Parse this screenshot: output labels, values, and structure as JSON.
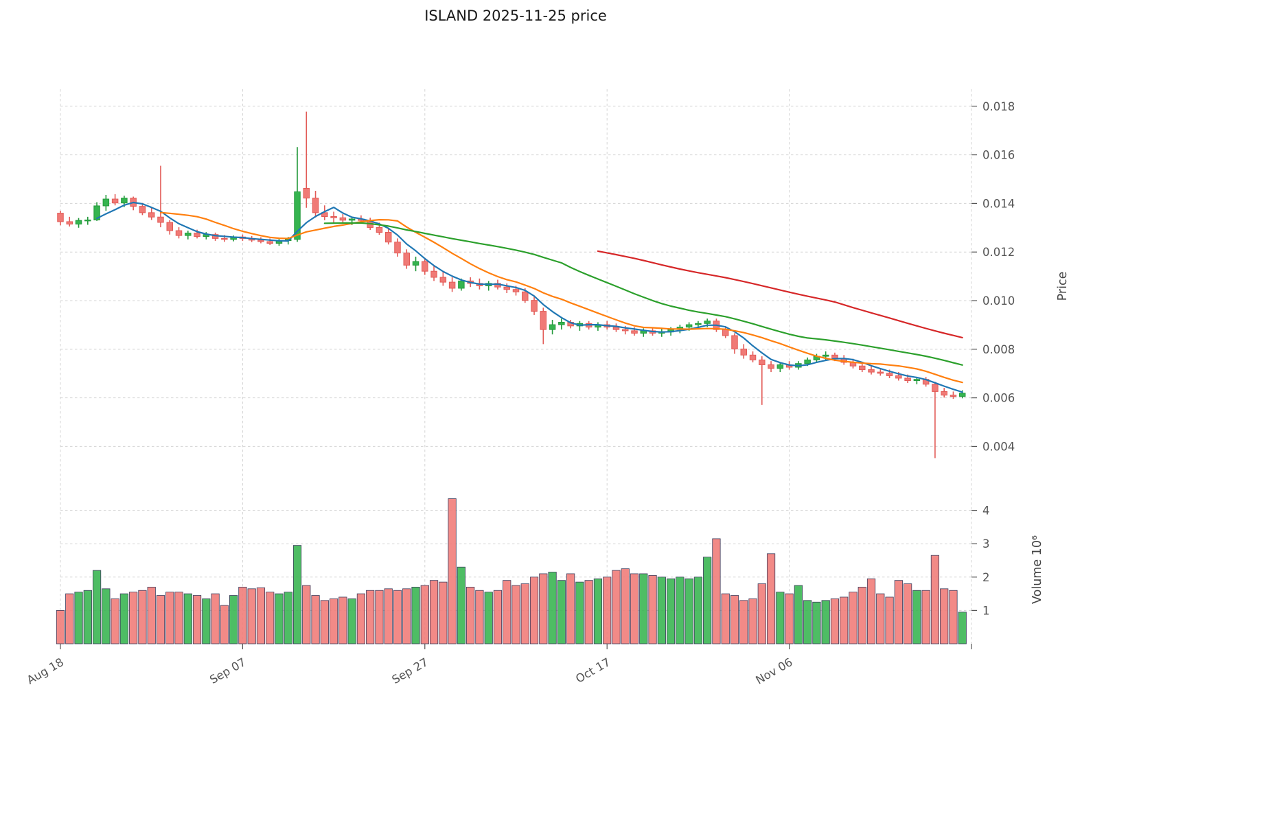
{
  "axes": {
    "price_label": "Price",
    "volume_label": "Volume  10⁶"
  },
  "chart_data": {
    "type": "candlestick",
    "title": "ISLAND  2025-11-25  price",
    "grid": true,
    "legend": "none",
    "price_ylim": [
      0.0026,
      0.0187
    ],
    "volume_ylim": [
      0,
      4.65
    ],
    "price_ticks": [
      {
        "v": 0.018,
        "label": "0.018"
      },
      {
        "v": 0.016,
        "label": "0.016"
      },
      {
        "v": 0.014,
        "label": "0.014"
      },
      {
        "v": 0.012,
        "label": "0.012"
      },
      {
        "v": 0.01,
        "label": "0.010"
      },
      {
        "v": 0.008,
        "label": "0.008"
      },
      {
        "v": 0.006,
        "label": "0.006"
      },
      {
        "v": 0.004,
        "label": "0.004"
      }
    ],
    "volume_ticks": [
      {
        "v": 1,
        "label": "1"
      },
      {
        "v": 2,
        "label": "2"
      },
      {
        "v": 3,
        "label": "3"
      },
      {
        "v": 4,
        "label": "4"
      }
    ],
    "x_ticks": [
      {
        "i": 0,
        "label": "Aug 18"
      },
      {
        "i": 20,
        "label": "Sep 07"
      },
      {
        "i": 40,
        "label": "Sep 27"
      },
      {
        "i": 60,
        "label": "Oct 17"
      },
      {
        "i": 80,
        "label": "Nov 06"
      },
      {
        "i": 100,
        "label": ""
      }
    ],
    "mav": {
      "windows": [
        5,
        12,
        30,
        60
      ],
      "colors": [
        "#1f77b4",
        "#ff7f0e",
        "#2ca02c",
        "#d62728"
      ]
    },
    "colors": {
      "up": "#35b44f",
      "up_edge": "#249a3c",
      "down": "#f07a76",
      "down_edge": "#e25b57",
      "volume_edge": "#3c3c5c",
      "grid": "#d4d4d4",
      "tick": "#555555"
    },
    "ohlc": [
      [
        0.0136,
        0.0137,
        0.0131,
        0.01325
      ],
      [
        0.01325,
        0.01345,
        0.01305,
        0.01315
      ],
      [
        0.01315,
        0.0134,
        0.013,
        0.0133
      ],
      [
        0.0133,
        0.01345,
        0.01312,
        0.01332
      ],
      [
        0.01332,
        0.01405,
        0.01328,
        0.0139
      ],
      [
        0.0139,
        0.01435,
        0.0137,
        0.01418
      ],
      [
        0.01418,
        0.01438,
        0.01392,
        0.01402
      ],
      [
        0.01402,
        0.01432,
        0.01385,
        0.01422
      ],
      [
        0.01422,
        0.01428,
        0.01372,
        0.01388
      ],
      [
        0.01388,
        0.01402,
        0.01352,
        0.01362
      ],
      [
        0.01362,
        0.01382,
        0.01332,
        0.01344
      ],
      [
        0.01344,
        0.01555,
        0.01302,
        0.01322
      ],
      [
        0.01322,
        0.01332,
        0.01272,
        0.01288
      ],
      [
        0.01288,
        0.01302,
        0.01256,
        0.01268
      ],
      [
        0.01268,
        0.01288,
        0.01252,
        0.01278
      ],
      [
        0.01278,
        0.01292,
        0.01256,
        0.01264
      ],
      [
        0.01264,
        0.01282,
        0.01252,
        0.01272
      ],
      [
        0.01272,
        0.0128,
        0.01246,
        0.01256
      ],
      [
        0.01256,
        0.0127,
        0.01242,
        0.01252
      ],
      [
        0.01252,
        0.01268,
        0.01244,
        0.01262
      ],
      [
        0.01262,
        0.01272,
        0.01246,
        0.01256
      ],
      [
        0.01256,
        0.01266,
        0.01241,
        0.01249
      ],
      [
        0.01249,
        0.01261,
        0.01236,
        0.01243
      ],
      [
        0.01243,
        0.01256,
        0.01229,
        0.01236
      ],
      [
        0.01236,
        0.01256,
        0.01226,
        0.01247
      ],
      [
        0.01247,
        0.01262,
        0.01231,
        0.01252
      ],
      [
        0.01252,
        0.01632,
        0.01242,
        0.01448
      ],
      [
        0.01462,
        0.01778,
        0.01382,
        0.01422
      ],
      [
        0.01422,
        0.01452,
        0.01342,
        0.01362
      ],
      [
        0.01362,
        0.01392,
        0.01331,
        0.01346
      ],
      [
        0.01346,
        0.01366,
        0.01321,
        0.01341
      ],
      [
        0.01341,
        0.01356,
        0.01316,
        0.01331
      ],
      [
        0.01331,
        0.01346,
        0.01311,
        0.01336
      ],
      [
        0.01336,
        0.01351,
        0.01321,
        0.0133
      ],
      [
        0.0133,
        0.01341,
        0.01291,
        0.01301
      ],
      [
        0.01301,
        0.01321,
        0.01271,
        0.01281
      ],
      [
        0.01281,
        0.01296,
        0.01231,
        0.01241
      ],
      [
        0.01241,
        0.01256,
        0.01181,
        0.01196
      ],
      [
        0.01196,
        0.01211,
        0.01131,
        0.01146
      ],
      [
        0.01146,
        0.01181,
        0.01121,
        0.01161
      ],
      [
        0.01161,
        0.01176,
        0.01106,
        0.01121
      ],
      [
        0.01121,
        0.01146,
        0.01081,
        0.01096
      ],
      [
        0.01096,
        0.01121,
        0.01061,
        0.01076
      ],
      [
        0.01076,
        0.01096,
        0.01036,
        0.01051
      ],
      [
        0.01051,
        0.01091,
        0.01041,
        0.01081
      ],
      [
        0.01081,
        0.01096,
        0.01056,
        0.01071
      ],
      [
        0.01071,
        0.01091,
        0.01046,
        0.01061
      ],
      [
        0.01061,
        0.01081,
        0.01041,
        0.01071
      ],
      [
        0.01071,
        0.01086,
        0.01046,
        0.01056
      ],
      [
        0.01056,
        0.01071,
        0.01031,
        0.01046
      ],
      [
        0.01046,
        0.01061,
        0.01021,
        0.01036
      ],
      [
        0.01036,
        0.01051,
        0.00991,
        0.01001
      ],
      [
        0.01001,
        0.01016,
        0.00941,
        0.00956
      ],
      [
        0.00956,
        0.00971,
        0.00821,
        0.00881
      ],
      [
        0.00881,
        0.00921,
        0.00861,
        0.00901
      ],
      [
        0.00901,
        0.00926,
        0.00881,
        0.00911
      ],
      [
        0.00911,
        0.00921,
        0.00886,
        0.00896
      ],
      [
        0.00896,
        0.00916,
        0.00876,
        0.00906
      ],
      [
        0.00906,
        0.00916,
        0.00881,
        0.00891
      ],
      [
        0.00891,
        0.00911,
        0.00876,
        0.00901
      ],
      [
        0.00901,
        0.00916,
        0.00881,
        0.00891
      ],
      [
        0.00891,
        0.00906,
        0.00871,
        0.00881
      ],
      [
        0.00881,
        0.00896,
        0.00861,
        0.00876
      ],
      [
        0.00876,
        0.00891,
        0.00856,
        0.00866
      ],
      [
        0.00866,
        0.00886,
        0.00851,
        0.00876
      ],
      [
        0.00876,
        0.00891,
        0.00856,
        0.00866
      ],
      [
        0.00866,
        0.00886,
        0.00851,
        0.00871
      ],
      [
        0.00871,
        0.00891,
        0.00856,
        0.00881
      ],
      [
        0.00881,
        0.00901,
        0.00866,
        0.00891
      ],
      [
        0.00891,
        0.00911,
        0.00876,
        0.00901
      ],
      [
        0.00901,
        0.00916,
        0.00886,
        0.00906
      ],
      [
        0.00906,
        0.00926,
        0.00891,
        0.00916
      ],
      [
        0.00916,
        0.00926,
        0.00871,
        0.00881
      ],
      [
        0.00881,
        0.00891,
        0.00846,
        0.00856
      ],
      [
        0.00856,
        0.00866,
        0.00781,
        0.00801
      ],
      [
        0.00801,
        0.00821,
        0.00761,
        0.00776
      ],
      [
        0.00776,
        0.00791,
        0.00746,
        0.00756
      ],
      [
        0.00756,
        0.00771,
        0.00571,
        0.00736
      ],
      [
        0.00736,
        0.00751,
        0.00706,
        0.00721
      ],
      [
        0.00721,
        0.00746,
        0.00706,
        0.00736
      ],
      [
        0.00736,
        0.00751,
        0.00716,
        0.00726
      ],
      [
        0.00726,
        0.00751,
        0.00716,
        0.00741
      ],
      [
        0.00741,
        0.00766,
        0.00731,
        0.00756
      ],
      [
        0.00756,
        0.00781,
        0.00746,
        0.00771
      ],
      [
        0.00771,
        0.00791,
        0.00756,
        0.00776
      ],
      [
        0.00776,
        0.00786,
        0.00751,
        0.00761
      ],
      [
        0.00761,
        0.00776,
        0.00736,
        0.00746
      ],
      [
        0.00746,
        0.00761,
        0.00721,
        0.00731
      ],
      [
        0.00731,
        0.00746,
        0.00706,
        0.00716
      ],
      [
        0.00716,
        0.00731,
        0.00696,
        0.00706
      ],
      [
        0.00706,
        0.00721,
        0.00691,
        0.00701
      ],
      [
        0.00701,
        0.00716,
        0.00681,
        0.00691
      ],
      [
        0.00691,
        0.00706,
        0.00671,
        0.00681
      ],
      [
        0.00681,
        0.00696,
        0.00661,
        0.00671
      ],
      [
        0.00671,
        0.00686,
        0.00656,
        0.00676
      ],
      [
        0.00676,
        0.00686,
        0.00646,
        0.00656
      ],
      [
        0.00656,
        0.00666,
        0.00352,
        0.00626
      ],
      [
        0.00626,
        0.00641,
        0.00601,
        0.00611
      ],
      [
        0.00611,
        0.00626,
        0.00596,
        0.00606
      ],
      [
        0.00606,
        0.00631,
        0.00598,
        0.00619
      ]
    ],
    "volume": [
      1.0,
      1.5,
      1.55,
      1.6,
      2.2,
      1.65,
      1.35,
      1.5,
      1.55,
      1.6,
      1.7,
      1.45,
      1.55,
      1.55,
      1.5,
      1.45,
      1.35,
      1.5,
      1.15,
      1.45,
      1.7,
      1.65,
      1.68,
      1.55,
      1.5,
      1.55,
      2.95,
      1.75,
      1.45,
      1.3,
      1.35,
      1.4,
      1.35,
      1.5,
      1.6,
      1.6,
      1.65,
      1.6,
      1.65,
      1.7,
      1.75,
      1.9,
      1.85,
      4.35,
      2.3,
      1.7,
      1.6,
      1.55,
      1.6,
      1.9,
      1.75,
      1.8,
      2.0,
      2.1,
      2.15,
      1.9,
      2.1,
      1.85,
      1.9,
      1.95,
      2.0,
      2.2,
      2.25,
      2.1,
      2.1,
      2.05,
      2.0,
      1.95,
      2.0,
      1.95,
      2.0,
      2.6,
      3.15,
      1.5,
      1.45,
      1.3,
      1.35,
      1.8,
      2.7,
      1.55,
      1.5,
      1.75,
      1.3,
      1.25,
      1.3,
      1.35,
      1.4,
      1.55,
      1.7,
      1.95,
      1.5,
      1.4,
      1.9,
      1.8,
      1.6,
      1.6,
      2.65,
      1.65,
      1.6,
      0.95
    ]
  }
}
